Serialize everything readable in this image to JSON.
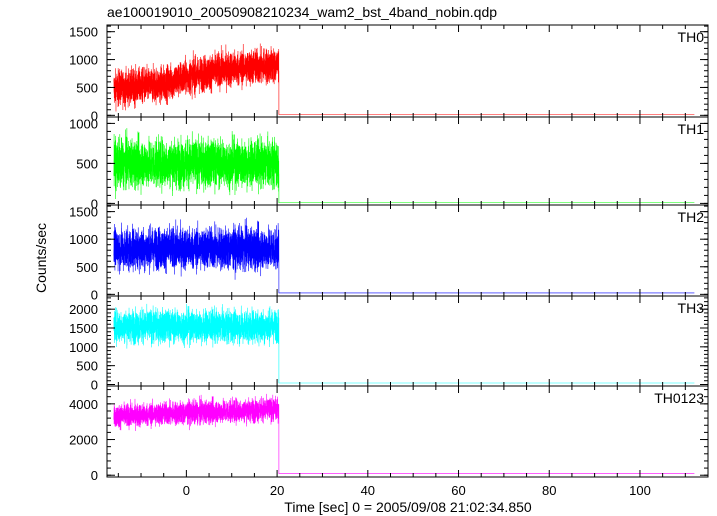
{
  "title": "ae100019010_20050908210234_wam2_bst_4band_nobin.qdp",
  "xlabel": "Time [sec] 0 = 2005/09/08 21:02:34.850",
  "ylabel": "Counts/sec",
  "chart_data": {
    "type": "line",
    "title": "ae100019010_20050908210234_wam2_bst_4band_nobin.qdp",
    "xlabel": "Time [sec] 0 = 2005/09/08 21:02:34.850",
    "ylabel": "Counts/sec",
    "xlim": [
      -17.5,
      115
    ],
    "x_ticks": [
      0,
      20,
      40,
      60,
      80,
      100
    ],
    "x_tick_labels": [
      "0",
      "20",
      "40",
      "60",
      "80",
      "100"
    ],
    "source_time_range": [
      -16,
      112
    ],
    "drop_time": 20.4,
    "panels": [
      {
        "name": "TH0",
        "color": "#ff0000",
        "ylim": [
          -30,
          1620
        ],
        "y_ticks": [
          0,
          500,
          1000,
          1500
        ],
        "y_tick_labels": [
          "0",
          "500",
          "1000",
          "1500"
        ],
        "segments": [
          {
            "t": -16,
            "mean": 480
          },
          {
            "t": -5,
            "mean": 560
          },
          {
            "t": 0,
            "mean": 680
          },
          {
            "t": 8,
            "mean": 820
          },
          {
            "t": 20.4,
            "mean": 900
          }
        ],
        "noise": 160,
        "after_level": 15
      },
      {
        "name": "TH1",
        "color": "#00ff00",
        "ylim": [
          -20,
          1080
        ],
        "y_ticks": [
          0,
          500,
          1000
        ],
        "y_tick_labels": [
          "0",
          "500",
          "1000"
        ],
        "segments": [
          {
            "t": -16,
            "mean": 500
          },
          {
            "t": 20.4,
            "mean": 500
          }
        ],
        "noise": 150,
        "after_level": 8
      },
      {
        "name": "TH2",
        "color": "#0000ff",
        "ylim": [
          -30,
          1620
        ],
        "y_ticks": [
          0,
          500,
          1000,
          1500
        ],
        "y_tick_labels": [
          "0",
          "500",
          "1000",
          "1500"
        ],
        "segments": [
          {
            "t": -16,
            "mean": 830
          },
          {
            "t": 20.4,
            "mean": 830
          }
        ],
        "noise": 190,
        "after_level": 25
      },
      {
        "name": "TH3",
        "color": "#00ffff",
        "ylim": [
          -40,
          2350
        ],
        "y_ticks": [
          0,
          500,
          1000,
          1500,
          2000
        ],
        "y_tick_labels": [
          "0",
          "500",
          "1000",
          "1500",
          "2000"
        ],
        "segments": [
          {
            "t": -16,
            "mean": 1550
          },
          {
            "t": 20.4,
            "mean": 1550
          }
        ],
        "noise": 220,
        "after_level": 40
      },
      {
        "name": "TH0123",
        "color": "#ff00ff",
        "ylim": [
          -100,
          5000
        ],
        "y_ticks": [
          0,
          2000,
          4000
        ],
        "y_tick_labels": [
          "0",
          "2000",
          "4000"
        ],
        "segments": [
          {
            "t": -16,
            "mean": 3300
          },
          {
            "t": 0,
            "mean": 3500
          },
          {
            "t": 20.4,
            "mean": 3700
          }
        ],
        "noise": 330,
        "after_level": 90
      }
    ]
  }
}
